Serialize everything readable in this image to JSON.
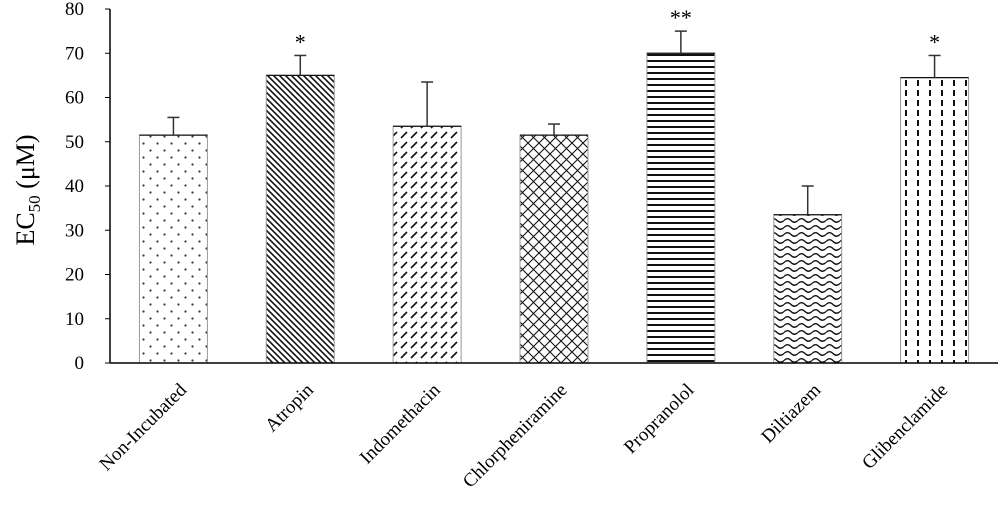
{
  "chart_data": {
    "type": "bar",
    "ylabel": "EC50 (μM)",
    "ylabel_parts": {
      "main": "EC",
      "subscript": "50",
      "unit": " (μM)"
    },
    "ylim": [
      0,
      80
    ],
    "yticks": [
      0,
      10,
      20,
      30,
      40,
      50,
      60,
      70,
      80
    ],
    "grid": false,
    "categories": [
      "Non-Incubated",
      "Atropin",
      "Indomethacin",
      "Chlorpheniramine",
      "Propranolol",
      "Diltiazem",
      "Glibenclamide"
    ],
    "values": [
      51.5,
      65,
      53.5,
      51.5,
      70,
      33.5,
      64.5
    ],
    "error": [
      4,
      4.5,
      10,
      2.5,
      5,
      6.5,
      5
    ],
    "significance": [
      "",
      "*",
      "",
      "",
      "**",
      "",
      "*"
    ],
    "patterns": [
      "dots",
      "diagonal-back",
      "dashes-diagonal",
      "crosshatch",
      "horizontal",
      "waves",
      "vertical-dashes"
    ]
  }
}
